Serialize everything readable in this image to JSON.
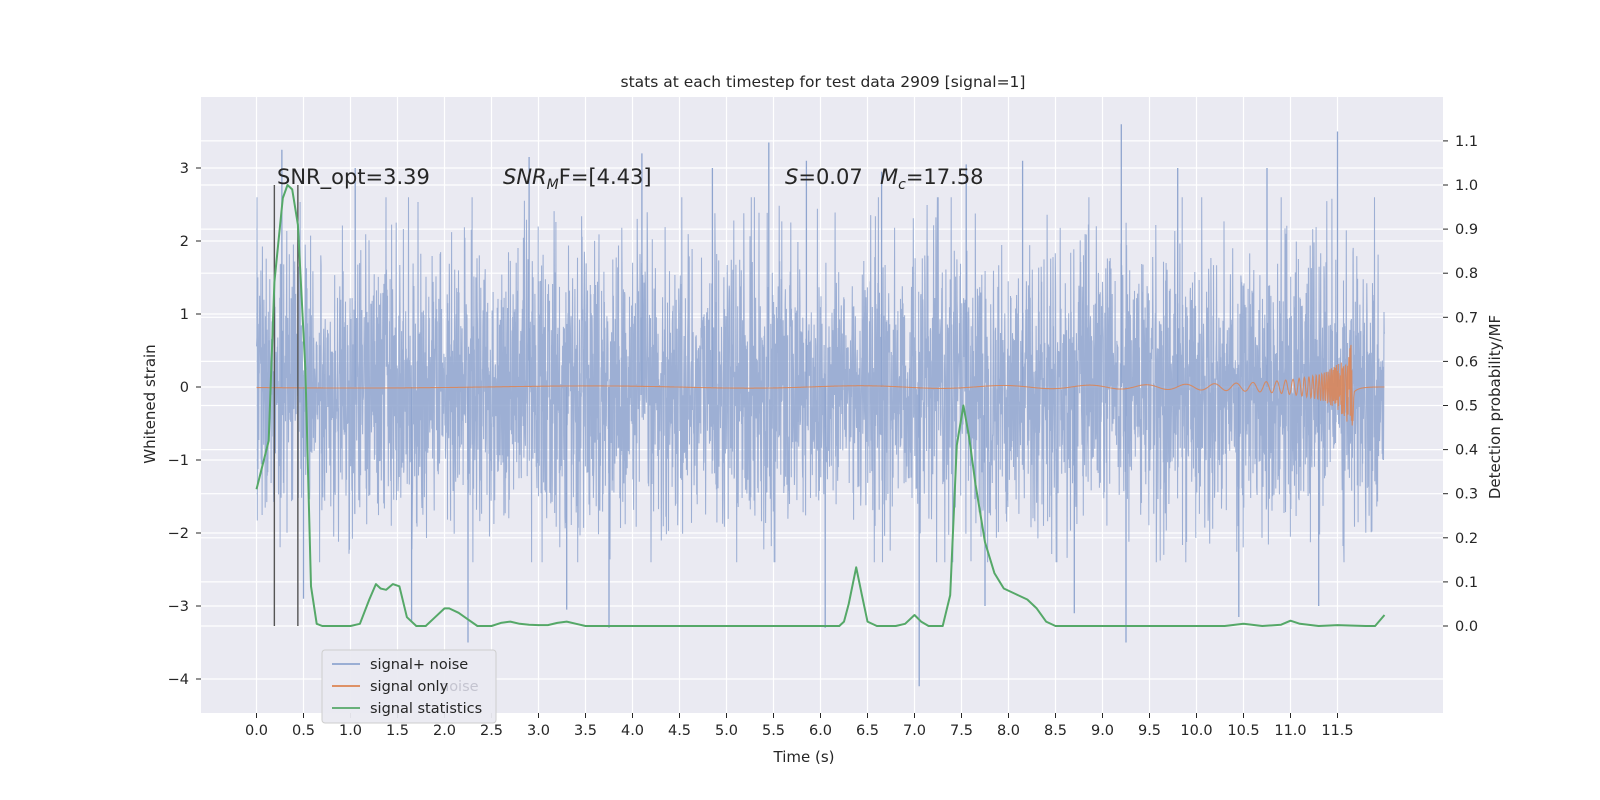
{
  "chart_data": {
    "type": "line",
    "title": "stats at each timestep for test data 2909 [signal=1]",
    "xlabel": "Time (s)",
    "ylabel": "Whitened strain",
    "ylabel_right": "Detection probability/MF",
    "xlim": [
      -0.58,
      12.6
    ],
    "ylim": [
      -4.45,
      3.9
    ],
    "ylim_right": [
      -0.2,
      1.2
    ],
    "x_ticks": [
      "0.0",
      "0.5",
      "1.0",
      "1.5",
      "2.0",
      "2.5",
      "3.0",
      "3.5",
      "4.0",
      "4.5",
      "5.0",
      "5.5",
      "6.0",
      "6.5",
      "7.0",
      "7.5",
      "8.0",
      "8.5",
      "9.0",
      "9.5",
      "10.0",
      "10.5",
      "11.0",
      "11.5"
    ],
    "y_ticks": [
      "3",
      "2",
      "1",
      "0",
      "−1",
      "−2",
      "−3",
      "−4"
    ],
    "y_ticks_right": [
      "1.1",
      "1.0",
      "0.9",
      "0.8",
      "0.7",
      "0.6",
      "0.5",
      "0.4",
      "0.3",
      "0.2",
      "0.1",
      "0.0"
    ],
    "grid": true,
    "legend_position": "lower-left",
    "annotations": {
      "snr_opt": "SNR_opt=3.39",
      "snr_mf_main": "SNR",
      "snr_mf_sub": "M",
      "snr_mf_rest": "F=[4.43]",
      "s_main": "S",
      "s_rest": "=0.07",
      "mc_main": "M",
      "mc_sub": "c",
      "mc_rest": "=17.58"
    },
    "legend_extra_faded": "noise",
    "markers": {
      "vlines_x": [
        0.19,
        0.44
      ],
      "y_range_right": [
        0.0,
        1.0
      ]
    },
    "series": [
      {
        "name": "signal+ noise",
        "color": "#8fa5cf",
        "description_values": {
          "x_range": [
            0.0,
            12.0
          ],
          "band_typical": [
            -1.8,
            2.2
          ],
          "max": 3.6,
          "min": -4.1
        },
        "spikes": [
          [
            0.27,
            3.25
          ],
          [
            0.5,
            -2.9
          ],
          [
            1.05,
            3.0
          ],
          [
            1.65,
            -3.2
          ],
          [
            2.25,
            -3.5
          ],
          [
            2.9,
            3.15
          ],
          [
            3.3,
            -3.05
          ],
          [
            3.75,
            -3.3
          ],
          [
            4.1,
            3.2
          ],
          [
            4.85,
            3.0
          ],
          [
            5.45,
            3.35
          ],
          [
            5.85,
            3.1
          ],
          [
            6.05,
            -3.3
          ],
          [
            6.65,
            2.95
          ],
          [
            7.05,
            -4.1
          ],
          [
            7.55,
            3.05
          ],
          [
            7.75,
            -3.0
          ],
          [
            8.15,
            3.1
          ],
          [
            8.7,
            -3.1
          ],
          [
            9.2,
            3.6
          ],
          [
            9.25,
            -3.5
          ],
          [
            9.8,
            3.0
          ],
          [
            10.45,
            -3.15
          ],
          [
            10.75,
            3.0
          ],
          [
            11.3,
            -3.0
          ],
          [
            11.5,
            3.5
          ]
        ]
      },
      {
        "name": "signal only",
        "color": "#dd8452",
        "description_values": {
          "chirp_start": 7.6,
          "chirp_peak_time": 11.65,
          "peak_amplitude": [
            0.62,
            -0.6
          ]
        }
      },
      {
        "name": "signal statistics",
        "color": "#55a868",
        "axis": "right",
        "x": [
          0.0,
          0.13,
          0.19,
          0.28,
          0.33,
          0.38,
          0.44,
          0.52,
          0.58,
          0.64,
          0.7,
          0.8,
          0.9,
          1.0,
          1.1,
          1.2,
          1.27,
          1.32,
          1.38,
          1.45,
          1.52,
          1.6,
          1.7,
          1.8,
          1.9,
          2.0,
          2.05,
          2.15,
          2.25,
          2.35,
          2.5,
          2.6,
          2.7,
          2.8,
          2.9,
          3.0,
          3.1,
          3.2,
          3.3,
          3.4,
          3.5,
          3.6,
          3.8,
          4.0,
          4.5,
          5.0,
          5.5,
          6.0,
          6.2,
          6.25,
          6.3,
          6.38,
          6.44,
          6.5,
          6.6,
          6.7,
          6.8,
          6.9,
          7.0,
          7.07,
          7.15,
          7.2,
          7.3,
          7.38,
          7.45,
          7.52,
          7.58,
          7.65,
          7.75,
          7.85,
          7.95,
          8.1,
          8.2,
          8.3,
          8.4,
          8.5,
          8.6,
          8.8,
          9.0,
          9.2,
          9.6,
          10.0,
          10.3,
          10.5,
          10.7,
          10.9,
          11.0,
          11.1,
          11.3,
          11.5,
          11.8,
          11.9,
          12.0
        ],
        "y": [
          0.31,
          0.42,
          0.78,
          0.97,
          1.0,
          0.99,
          0.91,
          0.58,
          0.09,
          0.005,
          0.0,
          0.0,
          0.0,
          0.0,
          0.005,
          0.06,
          0.095,
          0.085,
          0.082,
          0.095,
          0.09,
          0.02,
          0.0,
          0.0,
          0.02,
          0.04,
          0.04,
          0.03,
          0.015,
          0.0,
          0.0,
          0.007,
          0.01,
          0.005,
          0.003,
          0.002,
          0.002,
          0.007,
          0.01,
          0.005,
          0.0,
          0.0,
          0.0,
          0.0,
          0.0,
          0.0,
          0.0,
          0.0,
          0.0,
          0.01,
          0.05,
          0.133,
          0.07,
          0.01,
          0.0,
          0.0,
          0.0,
          0.005,
          0.025,
          0.01,
          0.0,
          0.0,
          0.0,
          0.07,
          0.41,
          0.5,
          0.43,
          0.32,
          0.19,
          0.12,
          0.085,
          0.07,
          0.06,
          0.04,
          0.01,
          0.0,
          0.0,
          0.0,
          0.0,
          0.0,
          0.0,
          0.0,
          0.0,
          0.005,
          0.0,
          0.003,
          0.012,
          0.005,
          0.0,
          0.002,
          0.0,
          0.0,
          0.025
        ]
      }
    ]
  }
}
